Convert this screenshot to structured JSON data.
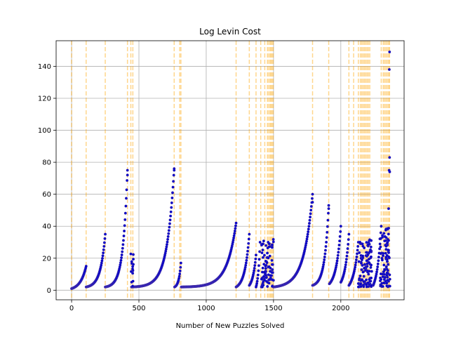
{
  "chart_data": {
    "type": "scatter",
    "title": "Log Levin Cost",
    "xlabel": "Number of New Puzzles Solved",
    "ylabel": "",
    "xlim": [
      -115,
      2470
    ],
    "ylim": [
      -6,
      156
    ],
    "xticks": [
      0,
      500,
      1000,
      1500,
      2000
    ],
    "yticks": [
      0,
      20,
      40,
      60,
      80,
      100,
      120,
      140
    ],
    "grid": true,
    "colors": {
      "points": "#0000cc",
      "vlines": "#ffa500",
      "grid": "#b0b0b0"
    },
    "vlines_x": [
      0,
      108,
      250,
      415,
      440,
      455,
      762,
      803,
      812,
      1222,
      1320,
      1370,
      1405,
      1435,
      1455,
      1465,
      1475,
      1482,
      1490,
      1498,
      1790,
      1910,
      2060,
      2095,
      2130,
      2145,
      2155,
      2165,
      2175,
      2185,
      2195,
      2205,
      2215,
      2300,
      2315,
      2325,
      2335,
      2345,
      2355,
      2362
    ],
    "segments": [
      {
        "x": [
          0,
          108
        ],
        "y": [
          1,
          15
        ],
        "k": 2.5
      },
      {
        "x": [
          108,
          250
        ],
        "y": [
          2,
          35
        ],
        "k": 4
      },
      {
        "x": [
          250,
          415
        ],
        "y": [
          2,
          75
        ],
        "k": 5
      },
      {
        "x": [
          445,
          762
        ],
        "y": [
          2,
          76
        ],
        "k": 6
      },
      {
        "x": [
          765,
          812
        ],
        "y": [
          2,
          17
        ],
        "k": 3
      },
      {
        "x": [
          815,
          1222
        ],
        "y": [
          2,
          42
        ],
        "k": 6
      },
      {
        "x": [
          1222,
          1320
        ],
        "y": [
          2,
          35
        ],
        "k": 3
      },
      {
        "x": [
          1320,
          1370
        ],
        "y": [
          3,
          22
        ],
        "k": 2
      },
      {
        "x": [
          1370,
          1400
        ],
        "y": [
          2,
          30
        ],
        "k": 2
      },
      {
        "x": [
          1410,
          1460
        ],
        "y": [
          2,
          30
        ],
        "k": 2
      },
      {
        "x": [
          1500,
          1790
        ],
        "y": [
          2,
          60
        ],
        "k": 4.5
      },
      {
        "x": [
          1790,
          1910
        ],
        "y": [
          3,
          53
        ],
        "k": 4
      },
      {
        "x": [
          1915,
          2000
        ],
        "y": [
          4,
          40
        ],
        "k": 2.5
      },
      {
        "x": [
          2000,
          2060
        ],
        "y": [
          5,
          35
        ],
        "k": 2
      },
      {
        "x": [
          2060,
          2130
        ],
        "y": [
          3,
          30
        ],
        "k": 2
      },
      {
        "x": [
          2240,
          2300
        ],
        "y": [
          3,
          40
        ],
        "k": 2
      },
      {
        "x": [
          2340,
          2362
        ],
        "y": [
          5,
          149
        ],
        "k": 5
      }
    ],
    "clusters": [
      {
        "x": [
          440,
          460
        ],
        "y": [
          2,
          25
        ],
        "n": 15
      },
      {
        "x": [
          1410,
          1500
        ],
        "y": [
          2,
          32
        ],
        "n": 70
      },
      {
        "x": [
          2130,
          2230
        ],
        "y": [
          2,
          32
        ],
        "n": 110
      },
      {
        "x": [
          2290,
          2365
        ],
        "y": [
          2,
          40
        ],
        "n": 90
      }
    ],
    "outliers": [
      {
        "x": 415,
        "y": 72
      },
      {
        "x": 762,
        "y": 75
      },
      {
        "x": 1790,
        "y": 55
      },
      {
        "x": 1910,
        "y": 51
      },
      {
        "x": 2360,
        "y": 138
      },
      {
        "x": 2362,
        "y": 83
      },
      {
        "x": 2363,
        "y": 74
      },
      {
        "x": 2355,
        "y": 51
      }
    ]
  }
}
